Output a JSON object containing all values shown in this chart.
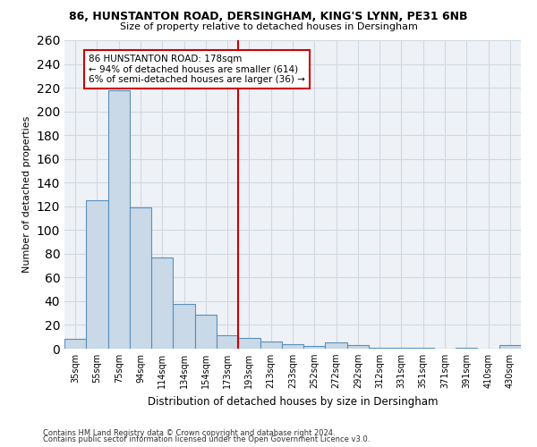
{
  "title_line1": "86, HUNSTANTON ROAD, DERSINGHAM, KING'S LYNN, PE31 6NB",
  "title_line2": "Size of property relative to detached houses in Dersingham",
  "xlabel": "Distribution of detached houses by size in Dersingham",
  "ylabel": "Number of detached properties",
  "categories": [
    "35sqm",
    "55sqm",
    "75sqm",
    "94sqm",
    "114sqm",
    "134sqm",
    "154sqm",
    "173sqm",
    "193sqm",
    "213sqm",
    "233sqm",
    "252sqm",
    "272sqm",
    "292sqm",
    "312sqm",
    "331sqm",
    "351sqm",
    "371sqm",
    "391sqm",
    "410sqm",
    "430sqm"
  ],
  "values": [
    8,
    125,
    218,
    119,
    77,
    38,
    29,
    11,
    9,
    6,
    4,
    2,
    5,
    3,
    1,
    1,
    1,
    0,
    1,
    0,
    3
  ],
  "bar_color": "#c9d9e8",
  "bar_edge_color": "#5a90bb",
  "vline_x": 7.5,
  "vline_color": "#cc0000",
  "annotation_line1": "86 HUNSTANTON ROAD: 178sqm",
  "annotation_line2": "← 94% of detached houses are smaller (614)",
  "annotation_line3": "6% of semi-detached houses are larger (36) →",
  "annotation_box_color": "#ffffff",
  "annotation_box_edge": "#cc0000",
  "ylim": [
    0,
    260
  ],
  "yticks": [
    0,
    20,
    40,
    60,
    80,
    100,
    120,
    140,
    160,
    180,
    200,
    220,
    240,
    260
  ],
  "grid_color": "#d0d8e0",
  "bg_color": "#eef2f7",
  "footnote1": "Contains HM Land Registry data © Crown copyright and database right 2024.",
  "footnote2": "Contains public sector information licensed under the Open Government Licence v3.0."
}
